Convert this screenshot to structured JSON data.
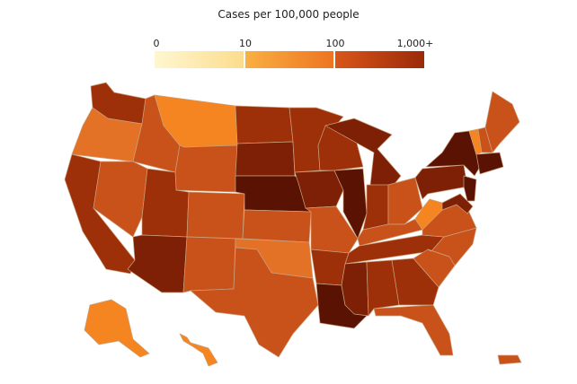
{
  "map": {
    "title": "Cases per 100,000 people",
    "legend": {
      "ticks": [
        "0",
        "10",
        "100",
        "1,000+"
      ],
      "gradient_stops": [
        [
          "#fff7d1",
          "#fbdc8c"
        ],
        [
          "#f9b042",
          "#ee7421"
        ],
        [
          "#d9561a",
          "#9b2a09"
        ],
        [
          "#7a1b06",
          "#4c1002"
        ]
      ]
    },
    "color_scale": {
      "lightest": "#f58520",
      "light": "#e37227",
      "medium": "#c9521a",
      "medium_dark": "#b7440f",
      "dark": "#9e3009",
      "darker": "#7d2006",
      "darkest": "#5a1203"
    }
  }
}
